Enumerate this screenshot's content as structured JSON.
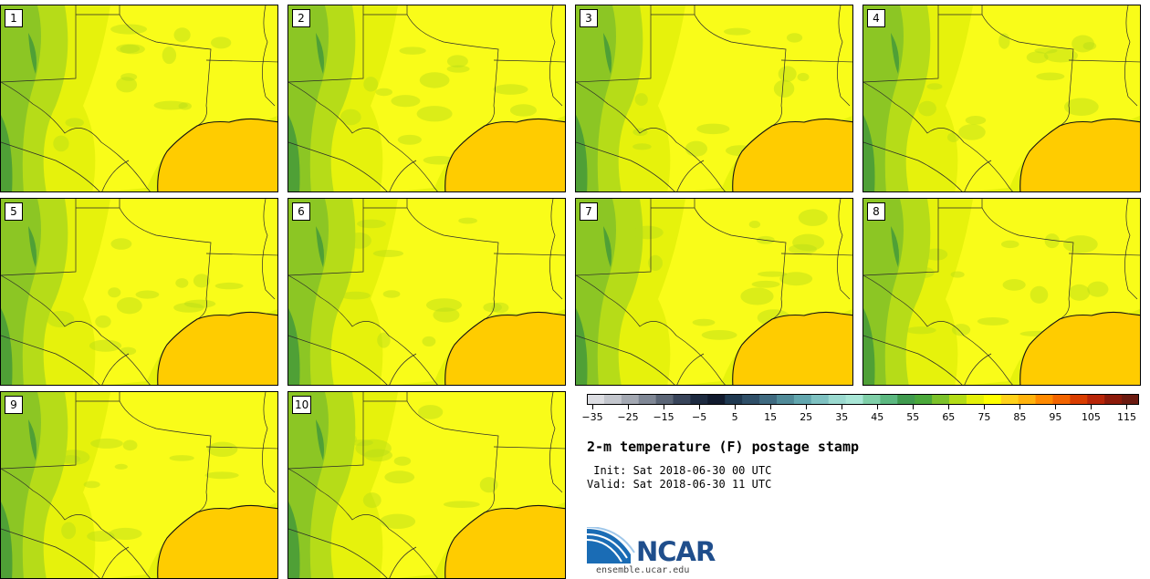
{
  "panels": [
    {
      "label": "1"
    },
    {
      "label": "2"
    },
    {
      "label": "3"
    },
    {
      "label": "4"
    },
    {
      "label": "5"
    },
    {
      "label": "6"
    },
    {
      "label": "7"
    },
    {
      "label": "8"
    },
    {
      "label": "9"
    },
    {
      "label": "10"
    }
  ],
  "colorbar": {
    "min": -35,
    "max": 120,
    "step": 5,
    "tick_labels": [
      "−35",
      "−25",
      "−15",
      "−5",
      "5",
      "15",
      "25",
      "35",
      "45",
      "55",
      "65",
      "75",
      "85",
      "95",
      "105",
      "115"
    ],
    "colors": [
      "#dcdde2",
      "#c3c6cd",
      "#a3a8b2",
      "#7f8795",
      "#5b6576",
      "#38445a",
      "#1d2a40",
      "#111a2e",
      "#1f3850",
      "#2f4f68",
      "#3f6a80",
      "#508a98",
      "#62a6ae",
      "#7ec1c1",
      "#9ad9cf",
      "#a8e6d6",
      "#7fcfa8",
      "#5cb880",
      "#3f9a4e",
      "#4aa83a",
      "#7cc22a",
      "#b3dc17",
      "#e4f00a",
      "#ffff00",
      "#ffd21a",
      "#ffb30d",
      "#ff8a00",
      "#f26400",
      "#d93d00",
      "#b82508",
      "#8c1a0a",
      "#6b1a10"
    ]
  },
  "title": "2-m temperature (F) postage stamp",
  "init_time": " Init: Sat 2018-06-30 00 UTC",
  "valid_time": "Valid: Sat 2018-06-30 11 UTC",
  "logo": {
    "name": "NCAR",
    "url": "ensemble.ucar.edu"
  },
  "map_colors": {
    "land_base": "#e6f20c",
    "warm_land": "#ffff1e",
    "cool_land": "#b6dc18",
    "mountain": "#82c028",
    "high_mountain": "#4fa036",
    "gulf": "#ffcc00",
    "boundary": "#2a2a2a"
  }
}
